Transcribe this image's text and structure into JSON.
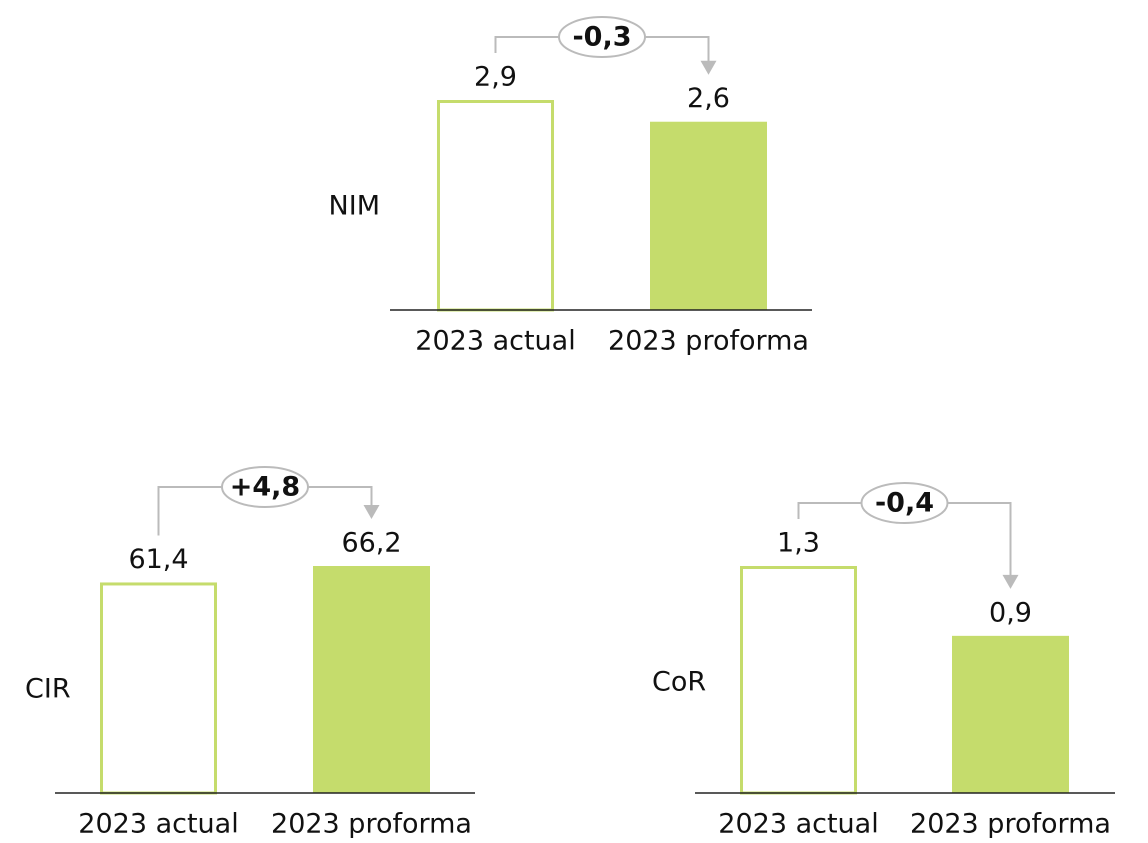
{
  "chart_data": [
    {
      "type": "bar",
      "label": "NIM",
      "categories": [
        "2023 actual",
        "2023 proforma"
      ],
      "values": [
        2.9,
        2.6
      ],
      "value_labels": [
        "2,9",
        "2,6"
      ],
      "annotation": "-0,3",
      "color": "#c5dc6c"
    },
    {
      "type": "bar",
      "label": "CIR",
      "categories": [
        "2023 actual",
        "2023 proforma"
      ],
      "values": [
        61.4,
        66.2
      ],
      "value_labels": [
        "61,4",
        "66,2"
      ],
      "annotation": "+4,8",
      "color": "#c5dc6c"
    },
    {
      "type": "bar",
      "label": "CoR",
      "categories": [
        "2023 actual",
        "2023 proforma"
      ],
      "values": [
        1.3,
        0.9
      ],
      "value_labels": [
        "1,3",
        "0,9"
      ],
      "annotation": "-0,4",
      "color": "#c5dc6c"
    }
  ]
}
